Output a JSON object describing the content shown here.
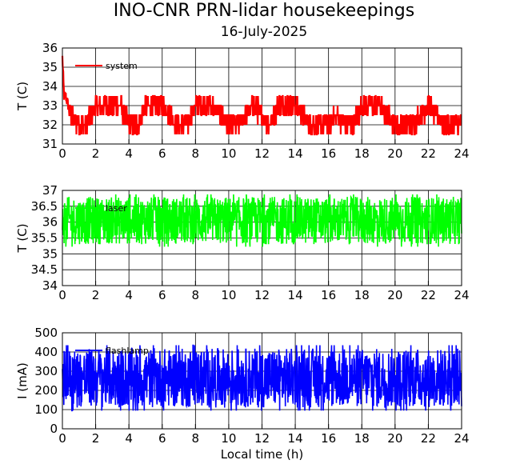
{
  "title": "INO-CNR PRN-lidar housekeepings",
  "subtitle": "16-July-2025",
  "chart_data": [
    {
      "type": "line",
      "xlim": [
        0,
        24
      ],
      "xticks": [
        0,
        2,
        4,
        6,
        8,
        10,
        12,
        14,
        16,
        18,
        20,
        22,
        24
      ],
      "ylim": [
        31,
        36
      ],
      "yticks": [
        31,
        32,
        33,
        34,
        35,
        36
      ],
      "ylabel": "T (C)",
      "xlabel": "",
      "grid": true,
      "legend_placement": "top-left",
      "series": [
        {
          "name": "system",
          "color": "#ff0000",
          "x": [
            0,
            0.05,
            0.1,
            0.2,
            0.35,
            0.5,
            1.0,
            1.5,
            2.0,
            2.5,
            3.0,
            3.5,
            4.0,
            4.5,
            5.0,
            5.5,
            6.0,
            6.5,
            7.0,
            7.5,
            8.0,
            8.5,
            9.0,
            9.5,
            10.0,
            10.5,
            11.0,
            11.5,
            12.0,
            12.5,
            13.0,
            13.5,
            14.0,
            14.5,
            15.0,
            15.5,
            16.0,
            16.5,
            17.0,
            17.5,
            18.0,
            18.5,
            19.0,
            19.5,
            20.0,
            20.5,
            21.0,
            21.5,
            22.0,
            22.5,
            23.0,
            23.5,
            24.0
          ],
          "y": [
            35.5,
            34.5,
            33.5,
            33.5,
            33.0,
            32.5,
            32.0,
            32.0,
            33.0,
            33.0,
            33.0,
            33.0,
            32.0,
            32.0,
            33.0,
            33.0,
            33.0,
            32.5,
            32.0,
            32.0,
            33.0,
            33.0,
            33.0,
            32.5,
            32.0,
            32.0,
            32.5,
            33.0,
            32.5,
            32.0,
            33.0,
            33.0,
            33.0,
            32.5,
            32.0,
            32.0,
            32.0,
            32.5,
            32.0,
            32.0,
            33.0,
            33.0,
            33.0,
            32.5,
            32.0,
            32.0,
            32.0,
            32.5,
            33.0,
            32.5,
            32.0,
            32.0,
            32.0
          ],
          "noise_band": [
            32.0,
            33.5
          ]
        }
      ]
    },
    {
      "type": "line",
      "xlim": [
        0,
        24
      ],
      "xticks": [
        0,
        2,
        4,
        6,
        8,
        10,
        12,
        14,
        16,
        18,
        20,
        22,
        24
      ],
      "ylim": [
        34,
        37
      ],
      "yticks": [
        34,
        34.5,
        35,
        35.5,
        36,
        36.5,
        37
      ],
      "ylabel": "T (C)",
      "xlabel": "",
      "grid": true,
      "legend_placement": "top-left",
      "series": [
        {
          "name": "laser",
          "color": "#00ff00",
          "x": [
            0,
            2,
            4,
            6,
            8,
            10,
            12,
            14,
            16,
            18,
            20,
            22,
            24
          ],
          "y": [
            36.0,
            36.0,
            36.0,
            36.0,
            36.0,
            36.0,
            36.0,
            36.0,
            36.0,
            36.0,
            36.0,
            36.0,
            36.0
          ],
          "noise_band": [
            35.3,
            36.8
          ]
        }
      ]
    },
    {
      "type": "line",
      "xlim": [
        0,
        24
      ],
      "xticks": [
        0,
        2,
        4,
        6,
        8,
        10,
        12,
        14,
        16,
        18,
        20,
        22,
        24
      ],
      "ylim": [
        0,
        500
      ],
      "yticks": [
        0,
        100,
        200,
        300,
        400,
        500
      ],
      "ylabel": "I (mA)",
      "xlabel": "Local time (h)",
      "grid": true,
      "legend_placement": "top-left",
      "series": [
        {
          "name": "flashlamp",
          "color": "#0000ff",
          "x": [
            0,
            2,
            4,
            6,
            8,
            10,
            12,
            14,
            16,
            18,
            20,
            22,
            24
          ],
          "y": [
            265,
            265,
            265,
            265,
            265,
            265,
            265,
            265,
            265,
            265,
            265,
            265,
            265
          ],
          "noise_band": [
            110,
            420
          ]
        }
      ]
    }
  ]
}
